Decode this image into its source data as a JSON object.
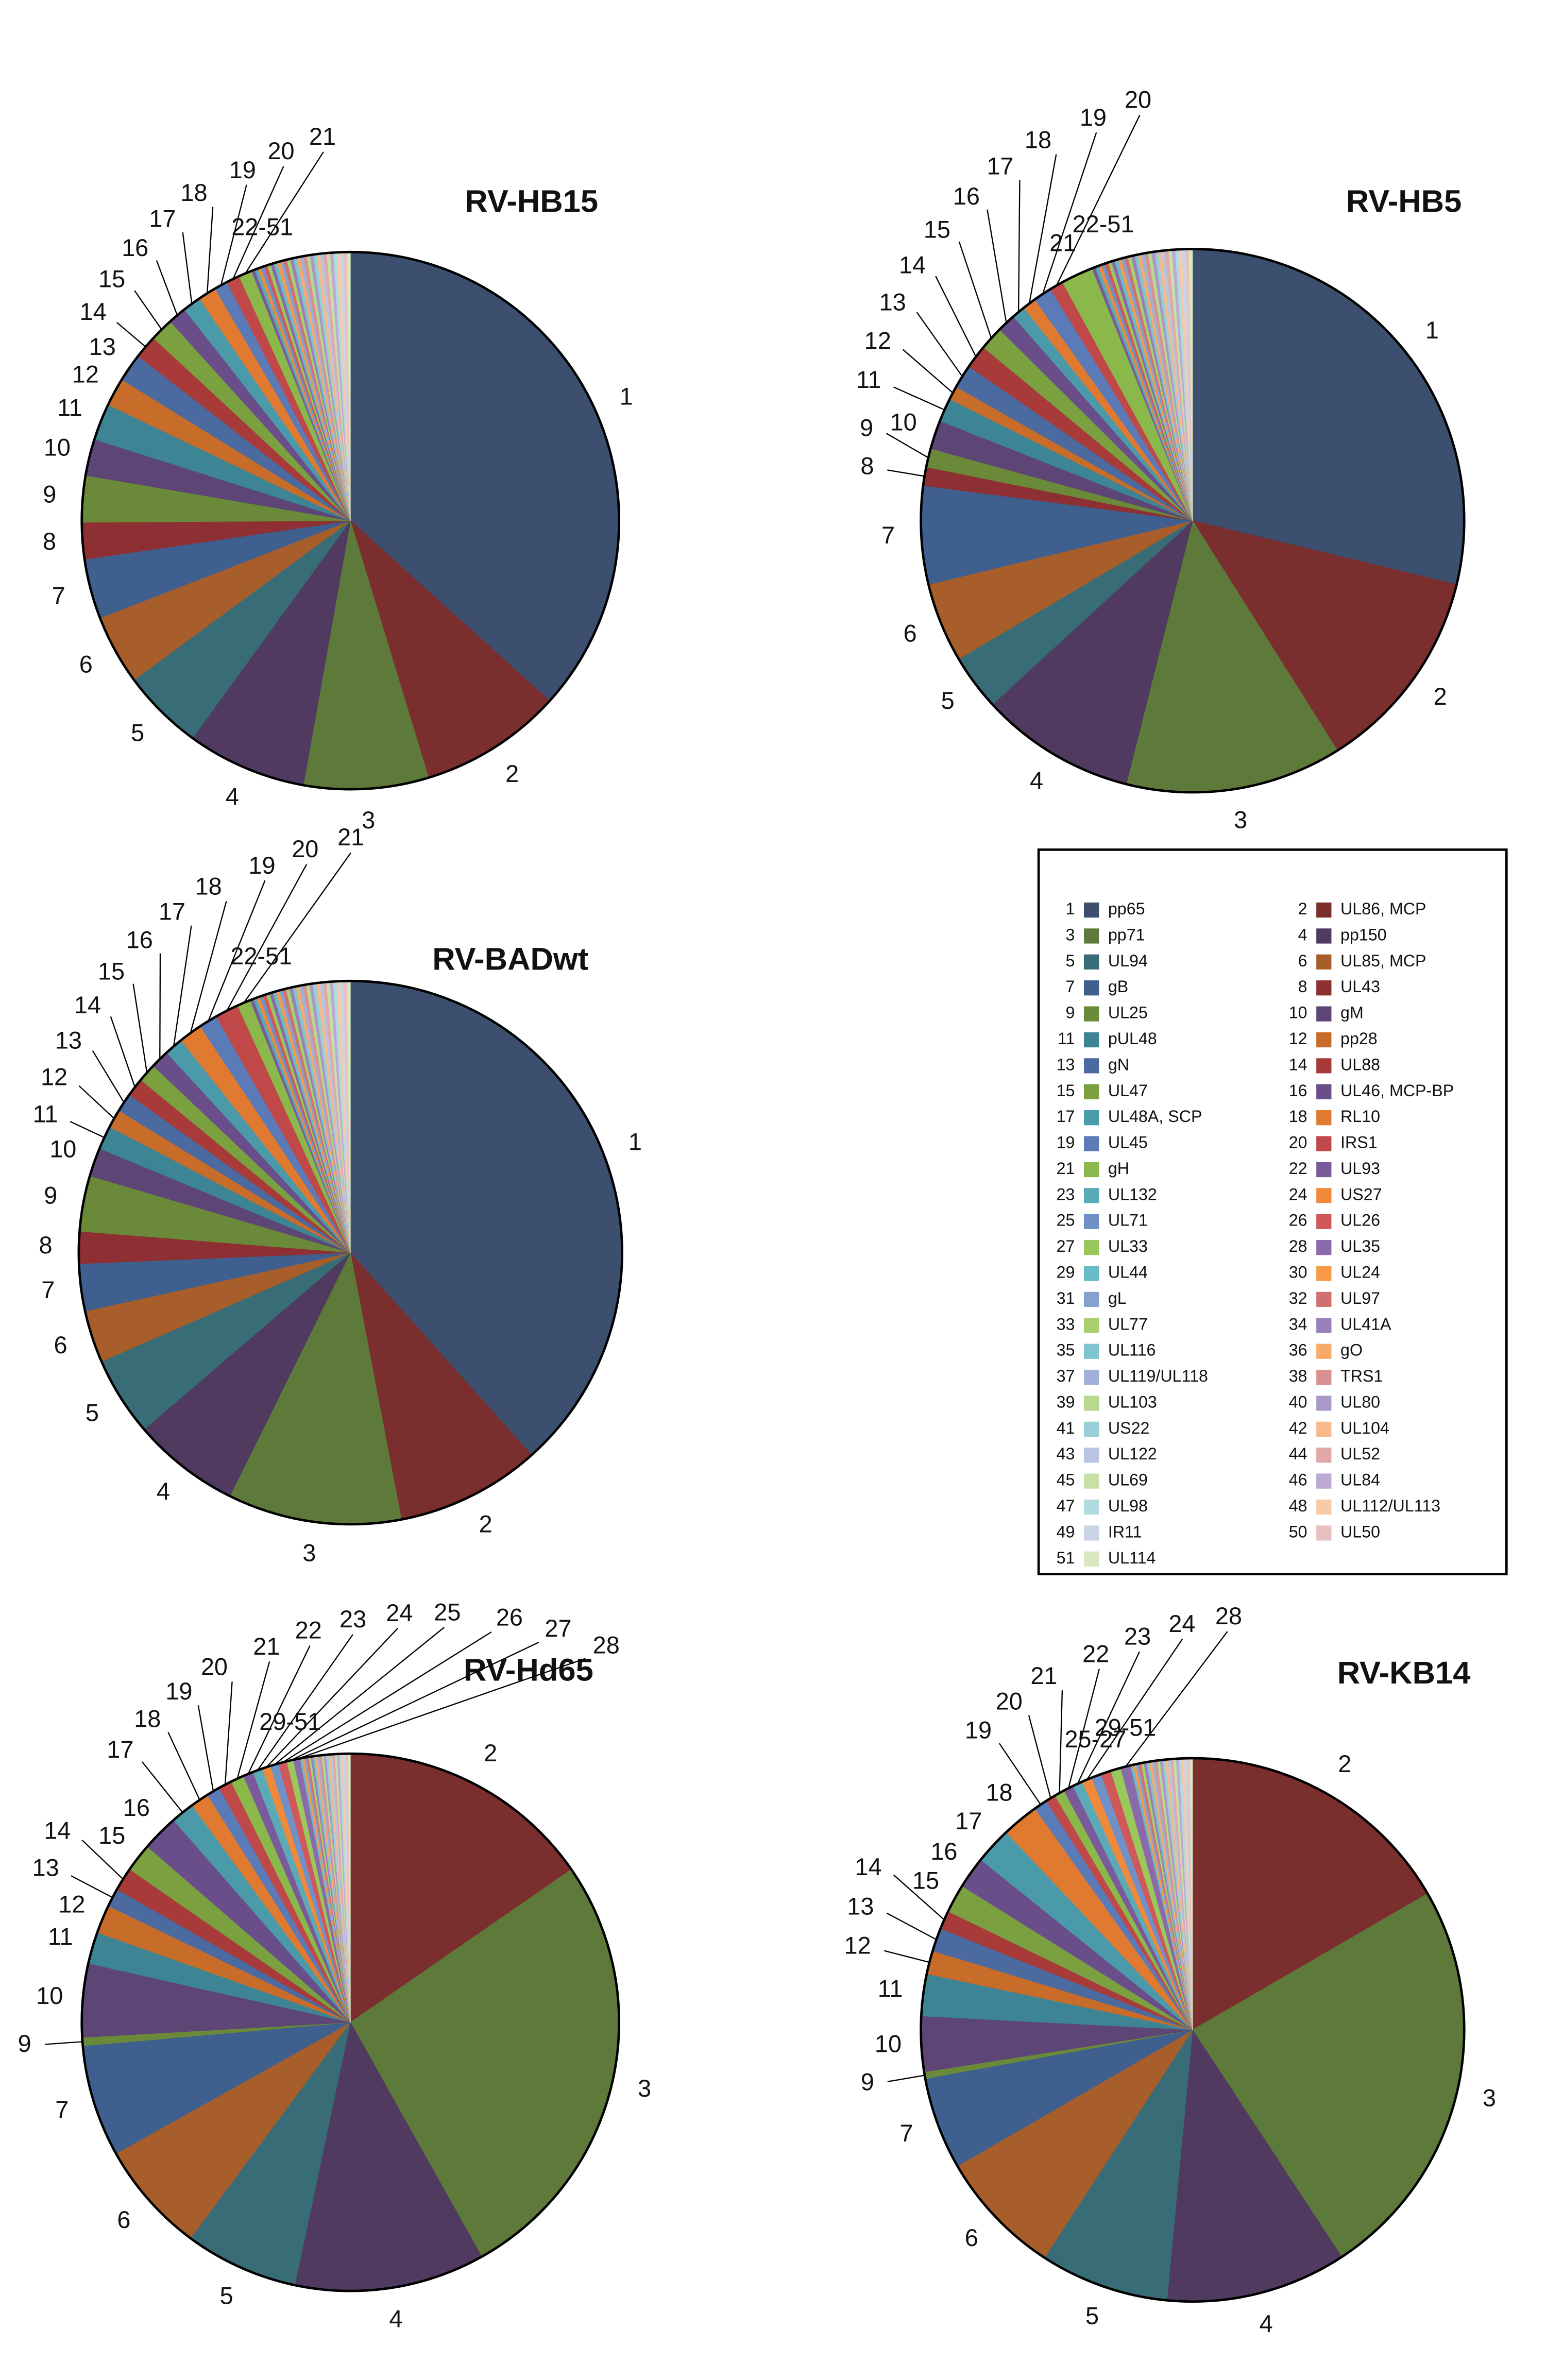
{
  "chart_data": [
    {
      "type": "pie",
      "title": "RV-HB15",
      "categories": [
        "1",
        "2",
        "3",
        "4",
        "5",
        "6",
        "7",
        "8",
        "9",
        "10",
        "11",
        "12",
        "13",
        "14",
        "15",
        "16",
        "17",
        "18",
        "19",
        "20",
        "21",
        null,
        null,
        null,
        null,
        null,
        null,
        null,
        null,
        null,
        null,
        null,
        null,
        null,
        null,
        null,
        null,
        null,
        null,
        null,
        null,
        null,
        null,
        null,
        null,
        null,
        null,
        null,
        null,
        null,
        null
      ],
      "values": [
        36.7,
        8.6,
        7.5,
        7.2,
        4.9,
        4.2,
        3.6,
        2.2,
        2.8,
        2.2,
        2.2,
        1.7,
        1.7,
        1.4,
        1.4,
        1.1,
        1.1,
        1.1,
        0.8,
        0.8,
        0.8,
        0.2,
        0.2,
        0.2,
        0.2,
        0.2,
        0.2,
        0.2,
        0.2,
        0.2,
        0.2,
        0.2,
        0.2,
        0.2,
        0.2,
        0.2,
        0.2,
        0.2,
        0.2,
        0.2,
        0.2,
        0.2,
        0.2,
        0.2,
        0.2,
        0.2,
        0.2,
        0.2,
        0.2,
        0.2,
        0.2
      ],
      "group_labels": [
        "22-51"
      ]
    },
    {
      "type": "pie",
      "title": "RV-HB5",
      "categories": [
        "1",
        "2",
        "3",
        "4",
        "5",
        "6",
        "7",
        "8",
        "9",
        "10",
        "11",
        "12",
        "13",
        "14",
        "15",
        "16",
        "17",
        "18",
        "19",
        "20",
        "21",
        null,
        null,
        null,
        null,
        null,
        null,
        null,
        null,
        null,
        null,
        null,
        null,
        null,
        null,
        null,
        null,
        null,
        null,
        null,
        null,
        null,
        null,
        null,
        null,
        null,
        null,
        null,
        null,
        null,
        null
      ],
      "values": [
        28.6,
        12.2,
        12.8,
        9.2,
        3.3,
        4.7,
        5.8,
        1.1,
        1.1,
        1.7,
        1.4,
        0.8,
        1.4,
        1.4,
        1.4,
        1.1,
        0.8,
        0.8,
        1.1,
        0.8,
        1.9,
        0.2,
        0.2,
        0.2,
        0.2,
        0.2,
        0.2,
        0.2,
        0.2,
        0.2,
        0.2,
        0.2,
        0.2,
        0.2,
        0.2,
        0.2,
        0.2,
        0.2,
        0.2,
        0.2,
        0.2,
        0.2,
        0.2,
        0.2,
        0.2,
        0.2,
        0.2,
        0.2,
        0.2,
        0.2,
        0.2
      ],
      "group_labels": [
        "22-51"
      ]
    },
    {
      "type": "pie",
      "title": "RV-BADwt",
      "categories": [
        "1",
        "2",
        "3",
        "4",
        "5",
        "6",
        "7",
        "8",
        "9",
        "10",
        "11",
        "12",
        "13",
        "14",
        "15",
        "16",
        "17",
        "18",
        "19",
        "20",
        "21",
        null,
        null,
        null,
        null,
        null,
        null,
        null,
        null,
        null,
        null,
        null,
        null,
        null,
        null,
        null,
        null,
        null,
        null,
        null,
        null,
        null,
        null,
        null,
        null,
        null,
        null,
        null,
        null,
        null,
        null
      ],
      "values": [
        38.3,
        8.6,
        10.3,
        6.4,
        4.7,
        3.1,
        2.8,
        1.9,
        3.3,
        1.7,
        1.4,
        1.1,
        1.1,
        1.1,
        1.1,
        1.1,
        1.1,
        1.4,
        1.1,
        1.4,
        0.8,
        0.2,
        0.2,
        0.2,
        0.2,
        0.2,
        0.2,
        0.2,
        0.2,
        0.2,
        0.2,
        0.2,
        0.2,
        0.2,
        0.2,
        0.2,
        0.2,
        0.2,
        0.2,
        0.2,
        0.2,
        0.2,
        0.2,
        0.2,
        0.2,
        0.2,
        0.2,
        0.2,
        0.2,
        0.2,
        0.2
      ],
      "group_labels": [
        "22-51"
      ]
    },
    {
      "type": "pie",
      "title": "RV-Hd65",
      "categories": [
        null,
        "2",
        "3",
        "4",
        "5",
        "6",
        "7",
        null,
        "9",
        "10",
        "11",
        "12",
        "13",
        "14",
        "15",
        "16",
        "17",
        "18",
        "19",
        "20",
        "21",
        "22",
        "23",
        "24",
        "25",
        "26",
        "27",
        "28",
        null,
        null,
        null,
        null,
        null,
        null,
        null,
        null,
        null,
        null,
        null,
        null,
        null,
        null,
        null,
        null,
        null,
        null,
        null,
        null,
        null,
        null,
        null
      ],
      "values": [
        0,
        15.3,
        26.4,
        11.4,
        6.8,
        6.7,
        6.7,
        0,
        0.5,
        4.4,
        1.9,
        1.7,
        1.1,
        1.4,
        1.7,
        2.2,
        1.4,
        1.1,
        0.8,
        0.8,
        0.8,
        0.6,
        0.6,
        0.5,
        0.5,
        0.5,
        0.4,
        0.4,
        0.13,
        0.13,
        0.13,
        0.13,
        0.13,
        0.13,
        0.13,
        0.13,
        0.13,
        0.13,
        0.13,
        0.13,
        0.13,
        0.13,
        0.13,
        0.13,
        0.13,
        0.13,
        0.13,
        0.13,
        0.13,
        0.13,
        0.13
      ],
      "group_labels": [
        "29-51"
      ]
    },
    {
      "type": "pie",
      "title": "RV-KB14",
      "categories": [
        null,
        "2",
        "3",
        "4",
        "5",
        "6",
        "7",
        null,
        "9",
        "10",
        "11",
        "12",
        "13",
        "14",
        "15",
        "16",
        "17",
        "18",
        "19",
        "20",
        "21",
        "22",
        "23",
        "24",
        null,
        null,
        null,
        "28",
        null,
        null,
        null,
        null,
        null,
        null,
        null,
        null,
        null,
        null,
        null,
        null,
        null,
        null,
        null,
        null,
        null,
        null,
        null,
        null,
        null,
        null,
        null
      ],
      "values": [
        0,
        16.7,
        24.2,
        10.8,
        7.7,
        7.5,
        5.5,
        0,
        0.4,
        3.3,
        2.5,
        1.4,
        1.4,
        1.1,
        1.7,
        1.9,
        2.2,
        2.2,
        0.8,
        0.6,
        0.6,
        0.6,
        0.6,
        0.6,
        0.6,
        0.6,
        0.6,
        0.6,
        0.16,
        0.16,
        0.16,
        0.16,
        0.16,
        0.16,
        0.16,
        0.16,
        0.16,
        0.16,
        0.16,
        0.16,
        0.16,
        0.16,
        0.16,
        0.16,
        0.16,
        0.16,
        0.16,
        0.16,
        0.16,
        0.16,
        0.16
      ],
      "group_labels": [
        "25-27",
        "29-51"
      ]
    }
  ],
  "legend": {
    "entries": [
      {
        "number": 1,
        "name": "pp65",
        "color": "#3c4f6e"
      },
      {
        "number": 2,
        "name": "UL86, MCP",
        "color": "#7b2e2e"
      },
      {
        "number": 3,
        "name": "pp71",
        "color": "#5e7a3a"
      },
      {
        "number": 4,
        "name": "pp150",
        "color": "#503a60"
      },
      {
        "number": 5,
        "name": "UL94",
        "color": "#386c76"
      },
      {
        "number": 6,
        "name": "UL85, MCP",
        "color": "#a85e2a"
      },
      {
        "number": 7,
        "name": "gB",
        "color": "#3f5f8f"
      },
      {
        "number": 8,
        "name": "UL43",
        "color": "#8e2f33"
      },
      {
        "number": 9,
        "name": "UL25",
        "color": "#6a8a3a"
      },
      {
        "number": 10,
        "name": "gM",
        "color": "#5d4575"
      },
      {
        "number": 11,
        "name": "pUL48",
        "color": "#3d8494"
      },
      {
        "number": 12,
        "name": "pp28",
        "color": "#c86c2a"
      },
      {
        "number": 13,
        "name": "gN",
        "color": "#4a6aa0"
      },
      {
        "number": 14,
        "name": "UL88",
        "color": "#a83a3a"
      },
      {
        "number": 15,
        "name": "UL47",
        "color": "#7aa040"
      },
      {
        "number": 16,
        "name": "UL46, MCP-BP",
        "color": "#6a4e8a"
      },
      {
        "number": 17,
        "name": "UL48A, SCP",
        "color": "#4a9aaa"
      },
      {
        "number": 18,
        "name": "RL10",
        "color": "#e07a30"
      },
      {
        "number": 19,
        "name": "UL45",
        "color": "#5a7ab8"
      },
      {
        "number": 20,
        "name": "IRS1",
        "color": "#c04848"
      },
      {
        "number": 21,
        "name": "gH",
        "color": "#8ab84a"
      },
      {
        "number": 22,
        "name": "UL93",
        "color": "#7a5a9a"
      },
      {
        "number": 23,
        "name": "UL132",
        "color": "#5aaab8"
      },
      {
        "number": 24,
        "name": "US27",
        "color": "#f08a3a"
      },
      {
        "number": 25,
        "name": "UL71",
        "color": "#7090c8"
      },
      {
        "number": 26,
        "name": "UL26",
        "color": "#d05858"
      },
      {
        "number": 27,
        "name": "UL33",
        "color": "#9ac85a"
      },
      {
        "number": 28,
        "name": "UL35",
        "color": "#8a6aaa"
      },
      {
        "number": 29,
        "name": "UL44",
        "color": "#6abac8"
      },
      {
        "number": 30,
        "name": "UL24",
        "color": "#f89a4a"
      },
      {
        "number": 31,
        "name": "gL",
        "color": "#88a0d0"
      },
      {
        "number": 32,
        "name": "UL97",
        "color": "#d07070"
      },
      {
        "number": 33,
        "name": "UL77",
        "color": "#a8d070"
      },
      {
        "number": 34,
        "name": "UL41A",
        "color": "#9a80ba"
      },
      {
        "number": 35,
        "name": "UL116",
        "color": "#80c4d0"
      },
      {
        "number": 36,
        "name": "gO",
        "color": "#f8aa6a"
      },
      {
        "number": 37,
        "name": "UL119/UL118",
        "color": "#a0b0d8"
      },
      {
        "number": 38,
        "name": "TRS1",
        "color": "#d89090"
      },
      {
        "number": 39,
        "name": "UL103",
        "color": "#b8d890"
      },
      {
        "number": 40,
        "name": "UL80",
        "color": "#aa98c8"
      },
      {
        "number": 41,
        "name": "US22",
        "color": "#98d0d8"
      },
      {
        "number": 42,
        "name": "UL104",
        "color": "#f8ba8a"
      },
      {
        "number": 43,
        "name": "UL122",
        "color": "#b8c4e0"
      },
      {
        "number": 44,
        "name": "UL52",
        "color": "#e0a8a8"
      },
      {
        "number": 45,
        "name": "UL69",
        "color": "#c8e0a8"
      },
      {
        "number": 46,
        "name": "UL84",
        "color": "#bcaad4"
      },
      {
        "number": 47,
        "name": "UL98",
        "color": "#b0dce0"
      },
      {
        "number": 48,
        "name": "UL112/UL113",
        "color": "#f8caa8"
      },
      {
        "number": 49,
        "name": "IR11",
        "color": "#cad4e8"
      },
      {
        "number": 50,
        "name": "UL50",
        "color": "#e8c0c0"
      },
      {
        "number": 51,
        "name": "UL114",
        "color": "#d8e8c0"
      }
    ]
  }
}
